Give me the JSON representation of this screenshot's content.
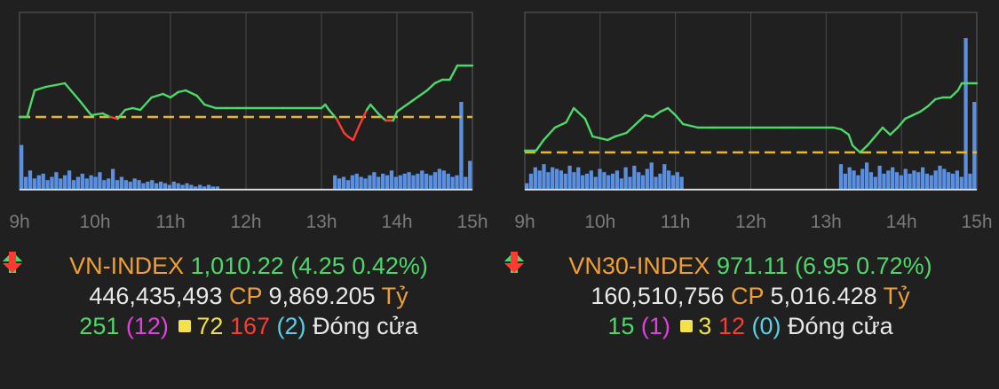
{
  "colors": {
    "background": "#202020",
    "up": "#4cd96a",
    "down": "#ff3b30",
    "reference": "#e8b820",
    "volume": "#5b8fe0",
    "grid": "#4a4a4a",
    "axis_text": "#7a7a7a",
    "label_orange": "#f0a030",
    "ceiling": "#e040e0",
    "unchanged": "#f0e040",
    "floor": "#5ad0e6"
  },
  "panels": [
    {
      "index_name": "VN-INDEX",
      "index_value": "1,010.22",
      "change": "(4.25 0.42%)",
      "volume": "446,435,493",
      "cp_label": "CP",
      "value_traded": "9,869.205",
      "value_unit": "Tỷ",
      "advancers": "251",
      "ceiling": "(12)",
      "unchanged": "72",
      "decliners": "167",
      "floor": "(2)",
      "status": "Đóng cửa"
    },
    {
      "index_name": "VN30-INDEX",
      "index_value": "971.11",
      "change": "(6.95 0.72%)",
      "volume": "160,510,756",
      "cp_label": "CP",
      "value_traded": "5,016.428",
      "value_unit": "Tỷ",
      "advancers": "15",
      "ceiling": "(1)",
      "unchanged": "3",
      "decliners": "12",
      "floor": "(0)",
      "status": "Đóng cửa"
    }
  ],
  "chart_data": [
    {
      "type": "line",
      "x_ticks": [
        "9h",
        "10h",
        "11h",
        "12h",
        "13h",
        "14h",
        "15h"
      ],
      "x_range": [
        9,
        15
      ],
      "y_range": [
        0,
        100
      ],
      "reference": 41,
      "grid": true,
      "series": [
        {
          "x": [
            9.0,
            9.1,
            9.2,
            9.35,
            9.6,
            9.8,
            9.95,
            10.1,
            10.2,
            10.3,
            10.4,
            10.5,
            10.6,
            10.75,
            10.9,
            11.0,
            11.1,
            11.2,
            11.35,
            11.45,
            11.6,
            11.75,
            11.9,
            12.0,
            12.5,
            13.0,
            13.05,
            13.1,
            13.2,
            13.3,
            13.35,
            13.42,
            13.5,
            13.6,
            13.65,
            13.75,
            13.85,
            13.95,
            14.0,
            14.1,
            14.2,
            14.3,
            14.4,
            14.5,
            14.6,
            14.7,
            14.8,
            14.9,
            15.0
          ],
          "y": [
            41,
            41,
            56,
            58,
            60,
            50,
            42,
            43,
            41,
            40,
            45,
            46,
            45,
            52,
            54,
            52,
            55,
            56,
            53,
            48,
            46,
            46,
            46,
            46,
            46,
            46,
            48,
            45,
            40,
            32,
            30,
            28,
            36,
            45,
            48,
            43,
            39,
            39,
            44,
            47,
            50,
            53,
            56,
            60,
            62,
            62,
            70,
            70,
            70
          ]
        }
      ],
      "volume": [
        28,
        8,
        12,
        7,
        9,
        10,
        6,
        8,
        11,
        7,
        9,
        12,
        6,
        8,
        10,
        7,
        9,
        8,
        11,
        6,
        7,
        13,
        6,
        8,
        6,
        5,
        7,
        6,
        4,
        5,
        6,
        4,
        5,
        4,
        3,
        5,
        4,
        3,
        4,
        3,
        2,
        3,
        2,
        3,
        2,
        2,
        0,
        0,
        0,
        0,
        0,
        0,
        0,
        0,
        0,
        0,
        0,
        0,
        0,
        0,
        0,
        0,
        0,
        0,
        0,
        0,
        0,
        0,
        0,
        0,
        0,
        0,
        9,
        7,
        8,
        6,
        9,
        10,
        8,
        7,
        9,
        11,
        8,
        10,
        9,
        12,
        8,
        9,
        10,
        11,
        9,
        10,
        12,
        10,
        9,
        11,
        13,
        12,
        10,
        8,
        9,
        55,
        8,
        18
      ]
    },
    {
      "type": "line",
      "x_ticks": [
        "9h",
        "10h",
        "11h",
        "12h",
        "13h",
        "14h",
        "15h"
      ],
      "x_range": [
        9,
        15
      ],
      "y_range": [
        0,
        100
      ],
      "reference": 21,
      "grid": true,
      "series": [
        {
          "x": [
            9.0,
            9.15,
            9.25,
            9.4,
            9.55,
            9.65,
            9.8,
            9.9,
            10.0,
            10.1,
            10.2,
            10.35,
            10.5,
            10.6,
            10.7,
            10.8,
            10.9,
            11.0,
            11.1,
            11.2,
            11.3,
            11.5,
            12.0,
            12.5,
            13.0,
            13.1,
            13.2,
            13.3,
            13.35,
            13.45,
            13.55,
            13.65,
            13.75,
            13.85,
            13.95,
            14.05,
            14.15,
            14.25,
            14.35,
            14.45,
            14.55,
            14.65,
            14.75,
            14.8,
            14.95,
            15.0
          ],
          "y": [
            22,
            22,
            28,
            35,
            38,
            46,
            40,
            30,
            29,
            28,
            30,
            32,
            38,
            42,
            41,
            44,
            46,
            42,
            37,
            36,
            35,
            35,
            35,
            35,
            35,
            35,
            34,
            31,
            25,
            21,
            25,
            30,
            35,
            31,
            35,
            40,
            42,
            44,
            47,
            51,
            52,
            52,
            56,
            60,
            60,
            60
          ]
        }
      ],
      "volume": [
        4,
        10,
        14,
        12,
        16,
        11,
        14,
        13,
        12,
        10,
        15,
        11,
        14,
        9,
        10,
        12,
        8,
        13,
        11,
        9,
        10,
        12,
        7,
        14,
        8,
        15,
        11,
        9,
        13,
        17,
        8,
        10,
        16,
        12,
        9,
        11,
        8,
        0,
        0,
        0,
        0,
        0,
        0,
        0,
        0,
        0,
        0,
        0,
        0,
        0,
        0,
        0,
        0,
        0,
        0,
        0,
        0,
        0,
        0,
        0,
        0,
        0,
        0,
        0,
        0,
        0,
        0,
        0,
        0,
        0,
        0,
        0,
        0,
        16,
        10,
        14,
        12,
        9,
        13,
        17,
        11,
        8,
        15,
        10,
        12,
        14,
        11,
        9,
        13,
        10,
        12,
        11,
        14,
        10,
        9,
        12,
        15,
        13,
        11,
        10,
        12,
        8,
        95,
        10,
        55
      ]
    }
  ]
}
